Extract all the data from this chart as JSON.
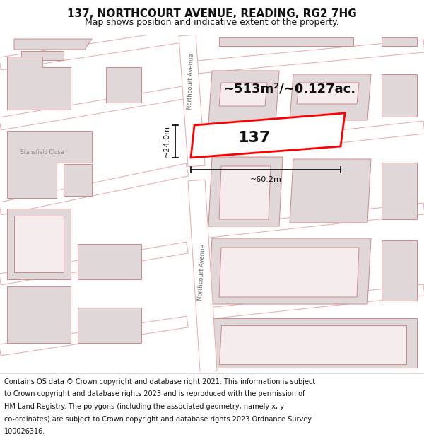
{
  "title": "137, NORTHCOURT AVENUE, READING, RG2 7HG",
  "subtitle": "Map shows position and indicative extent of the property.",
  "footer_lines": [
    "Contains OS data © Crown copyright and database right 2021. This information is subject",
    "to Crown copyright and database rights 2023 and is reproduced with the permission of",
    "HM Land Registry. The polygons (including the associated geometry, namely x, y",
    "co-ordinates) are subject to Crown copyright and database rights 2023 Ordnance Survey",
    "100026316."
  ],
  "area_text": "~513m²/~0.127ac.",
  "label_137": "137",
  "dim_width": "~60.2m",
  "dim_height": "~24.0m",
  "street_label_upper": "Northcourt Avenue",
  "street_label_lower": "Northcourt Avenue",
  "stansfield_label": "Stansfield Close",
  "map_bg": "#f5eded",
  "road_color": "#ffffff",
  "road_ec": "#e8a8a8",
  "building_fill": "#e0d8d8",
  "building_ec": "#cc8888",
  "plot_fill": "#ffffff",
  "plot_stroke": "#ff0000",
  "text_color": "#111111",
  "title_fontsize": 11,
  "subtitle_fontsize": 9,
  "footer_fontsize": 7.0,
  "area_fontsize": 13,
  "label_fontsize": 16,
  "dim_fontsize": 8,
  "street_fontsize": 6,
  "stansfield_fontsize": 5.5
}
